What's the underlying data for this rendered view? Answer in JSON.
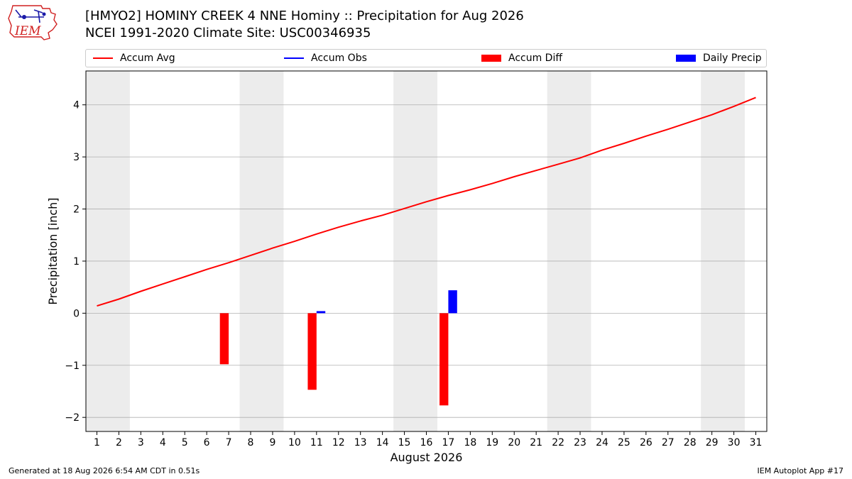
{
  "header": {
    "logo_text": "IEM",
    "title_line1": "[HMYO2] HOMINY CREEK 4 NNE Hominy :: Precipitation for Aug 2026",
    "title_line2": "NCEI 1991-2020 Climate Site: USC00346935"
  },
  "legend": {
    "placement": "top, above plot, horizontal",
    "items": [
      {
        "label": "Accum Avg",
        "kind": "line",
        "color": "#ff0000"
      },
      {
        "label": "Accum Obs",
        "kind": "line",
        "color": "#0000ff"
      },
      {
        "label": "Accum Diff",
        "kind": "box",
        "color": "#ff0000"
      },
      {
        "label": "Daily Precip",
        "kind": "box",
        "color": "#0000ff"
      }
    ]
  },
  "footer": {
    "left": "Generated at 18 Aug 2026 6:54 AM CDT in 0.51s",
    "right": "IEM Autoplot App #17"
  },
  "chart_data": {
    "type": "bar",
    "title": "[HMYO2] HOMINY CREEK 4 NNE Hominy :: Precipitation for Aug 2026",
    "subtitle": "NCEI 1991-2020 Climate Site: USC00346935",
    "xlabel": "August 2026",
    "ylabel": "Precipitation [inch]",
    "x": [
      1,
      2,
      3,
      4,
      5,
      6,
      7,
      8,
      9,
      10,
      11,
      12,
      13,
      14,
      15,
      16,
      17,
      18,
      19,
      20,
      21,
      22,
      23,
      24,
      25,
      26,
      27,
      28,
      29,
      30,
      31
    ],
    "xlim": [
      0.5,
      31.5
    ],
    "ylim": [
      -2.27,
      4.65
    ],
    "yticks": [
      -2,
      -1,
      0,
      1,
      2,
      3,
      4
    ],
    "grid": "y-axis horizontal lines",
    "weekend_shading": [
      [
        1,
        2
      ],
      [
        8,
        9
      ],
      [
        15,
        16
      ],
      [
        22,
        23
      ],
      [
        29,
        30
      ]
    ],
    "shading_color": "#ececec",
    "series": [
      {
        "name": "Accum Avg",
        "kind": "line",
        "color": "#ff0000",
        "x": [
          1,
          2,
          3,
          4,
          5,
          6,
          7,
          8,
          9,
          10,
          11,
          12,
          13,
          14,
          15,
          16,
          17,
          18,
          19,
          20,
          21,
          22,
          23,
          24,
          25,
          26,
          27,
          28,
          29,
          30,
          31
        ],
        "values": [
          0.14,
          0.27,
          0.42,
          0.56,
          0.7,
          0.84,
          0.97,
          1.11,
          1.25,
          1.38,
          1.52,
          1.65,
          1.77,
          1.88,
          2.01,
          2.14,
          2.26,
          2.37,
          2.49,
          2.62,
          2.74,
          2.86,
          2.98,
          3.13,
          3.26,
          3.4,
          3.53,
          3.67,
          3.81,
          3.97,
          4.14
        ]
      },
      {
        "name": "Accum Obs",
        "kind": "line",
        "color": "#0000ff",
        "x": [],
        "values": []
      },
      {
        "name": "Accum Diff",
        "kind": "bar",
        "color": "#ff0000",
        "x": [
          7,
          11,
          17
        ],
        "values": [
          -0.98,
          -1.47,
          -1.77
        ]
      },
      {
        "name": "Daily Precip",
        "kind": "bar",
        "color": "#0000ff",
        "x": [
          11,
          17
        ],
        "values": [
          0.04,
          0.44
        ]
      }
    ]
  }
}
